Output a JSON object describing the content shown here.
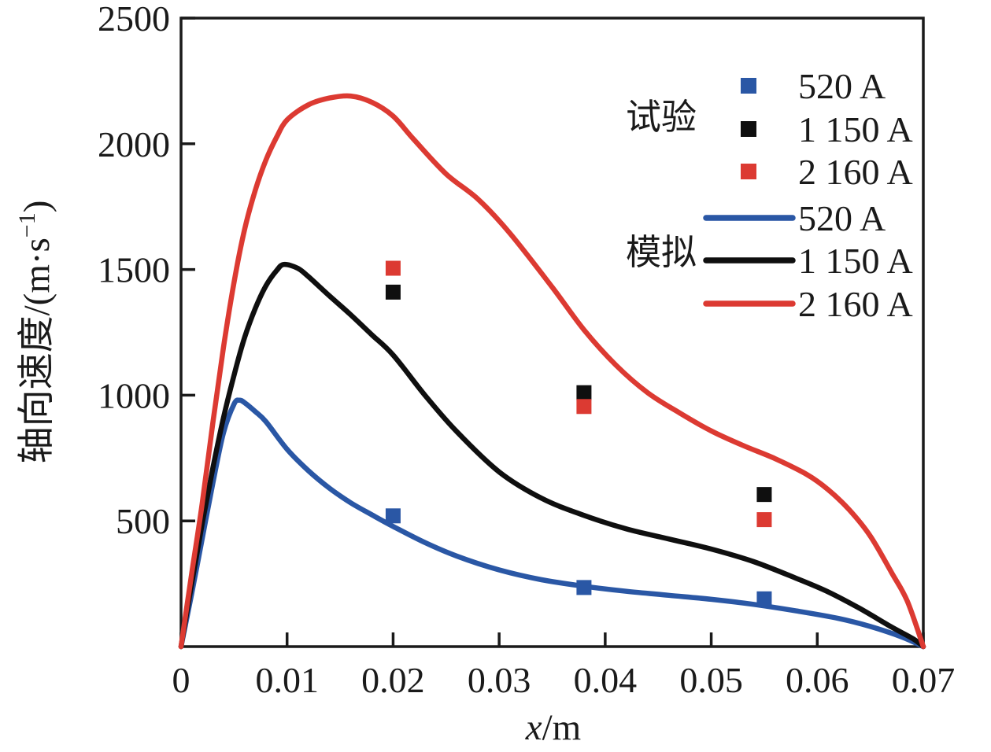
{
  "figure": {
    "background_color": "#ffffff",
    "axis_color": "#1a1a1a"
  },
  "chart_data": {
    "type": "line",
    "title": "",
    "xlabel": "x/m",
    "xlabel_parts": {
      "italic": "x",
      "rest": "/m"
    },
    "ylabel": "轴向速度/(m·s⁻¹)",
    "ylabel_parts": {
      "prefix": "轴向速度/(m·s",
      "sup": "−1",
      "suffix": ")"
    },
    "xlim": [
      0,
      0.07
    ],
    "ylim": [
      0,
      2500
    ],
    "x_ticks": [
      0,
      0.01,
      0.02,
      0.03,
      0.04,
      0.05,
      0.06,
      0.07
    ],
    "x_tick_labels": [
      "0",
      "0.01",
      "0.02",
      "0.03",
      "0.04",
      "0.05",
      "0.06",
      "0.07"
    ],
    "y_ticks": [
      500,
      1000,
      1500,
      2000,
      2500
    ],
    "y_tick_labels": [
      "500",
      "1000",
      "1500",
      "2000",
      "2500"
    ],
    "grid": false,
    "legend_position": "upper right inside",
    "legend": {
      "experiment_group_label": "试验",
      "simulation_group_label": "模拟"
    },
    "series": [
      {
        "name": "520 A",
        "color": "#2a57a5",
        "experiment_points": [
          [
            0.02,
            520
          ],
          [
            0.038,
            235
          ],
          [
            0.055,
            190
          ]
        ],
        "simulation_curve": [
          [
            0,
            0
          ],
          [
            0.001,
            210
          ],
          [
            0.002,
            430
          ],
          [
            0.003,
            650
          ],
          [
            0.004,
            850
          ],
          [
            0.005,
            965
          ],
          [
            0.0055,
            980
          ],
          [
            0.006,
            970
          ],
          [
            0.007,
            935
          ],
          [
            0.008,
            895
          ],
          [
            0.01,
            785
          ],
          [
            0.012,
            700
          ],
          [
            0.014,
            630
          ],
          [
            0.016,
            572
          ],
          [
            0.018,
            524
          ],
          [
            0.02,
            478
          ],
          [
            0.023,
            414
          ],
          [
            0.026,
            360
          ],
          [
            0.03,
            305
          ],
          [
            0.034,
            266
          ],
          [
            0.038,
            240
          ],
          [
            0.042,
            220
          ],
          [
            0.046,
            204
          ],
          [
            0.05,
            188
          ],
          [
            0.054,
            168
          ],
          [
            0.058,
            142
          ],
          [
            0.062,
            112
          ],
          [
            0.065,
            80
          ],
          [
            0.068,
            38
          ],
          [
            0.07,
            0
          ]
        ]
      },
      {
        "name": "1 150 A",
        "color": "#0f0f0f",
        "experiment_points": [
          [
            0.02,
            1410
          ],
          [
            0.038,
            1010
          ],
          [
            0.055,
            605
          ]
        ],
        "simulation_curve": [
          [
            0,
            0
          ],
          [
            0.001,
            250
          ],
          [
            0.002,
            490
          ],
          [
            0.003,
            710
          ],
          [
            0.004,
            910
          ],
          [
            0.005,
            1080
          ],
          [
            0.006,
            1230
          ],
          [
            0.007,
            1345
          ],
          [
            0.008,
            1435
          ],
          [
            0.009,
            1495
          ],
          [
            0.0097,
            1520
          ],
          [
            0.011,
            1505
          ],
          [
            0.012,
            1472
          ],
          [
            0.014,
            1395
          ],
          [
            0.016,
            1320
          ],
          [
            0.018,
            1240
          ],
          [
            0.02,
            1160
          ],
          [
            0.023,
            1000
          ],
          [
            0.026,
            855
          ],
          [
            0.03,
            695
          ],
          [
            0.034,
            590
          ],
          [
            0.038,
            522
          ],
          [
            0.042,
            468
          ],
          [
            0.046,
            428
          ],
          [
            0.05,
            388
          ],
          [
            0.054,
            338
          ],
          [
            0.058,
            272
          ],
          [
            0.061,
            218
          ],
          [
            0.064,
            152
          ],
          [
            0.067,
            78
          ],
          [
            0.069,
            32
          ],
          [
            0.07,
            0
          ]
        ]
      },
      {
        "name": "2 160 A",
        "color": "#dc3a32",
        "experiment_points": [
          [
            0.02,
            1505
          ],
          [
            0.038,
            955
          ],
          [
            0.055,
            505
          ]
        ],
        "simulation_curve": [
          [
            0,
            0
          ],
          [
            0.001,
            290
          ],
          [
            0.002,
            570
          ],
          [
            0.003,
            890
          ],
          [
            0.004,
            1190
          ],
          [
            0.005,
            1450
          ],
          [
            0.006,
            1660
          ],
          [
            0.007,
            1815
          ],
          [
            0.008,
            1935
          ],
          [
            0.009,
            2025
          ],
          [
            0.01,
            2095
          ],
          [
            0.012,
            2155
          ],
          [
            0.014,
            2182
          ],
          [
            0.016,
            2190
          ],
          [
            0.018,
            2165
          ],
          [
            0.02,
            2110
          ],
          [
            0.022,
            2015
          ],
          [
            0.025,
            1880
          ],
          [
            0.028,
            1780
          ],
          [
            0.031,
            1645
          ],
          [
            0.035,
            1430
          ],
          [
            0.038,
            1260
          ],
          [
            0.041,
            1120
          ],
          [
            0.044,
            1010
          ],
          [
            0.047,
            930
          ],
          [
            0.05,
            858
          ],
          [
            0.053,
            800
          ],
          [
            0.056,
            748
          ],
          [
            0.059,
            685
          ],
          [
            0.061,
            625
          ],
          [
            0.063,
            545
          ],
          [
            0.065,
            440
          ],
          [
            0.067,
            295
          ],
          [
            0.0685,
            180
          ],
          [
            0.07,
            0
          ]
        ]
      }
    ]
  }
}
